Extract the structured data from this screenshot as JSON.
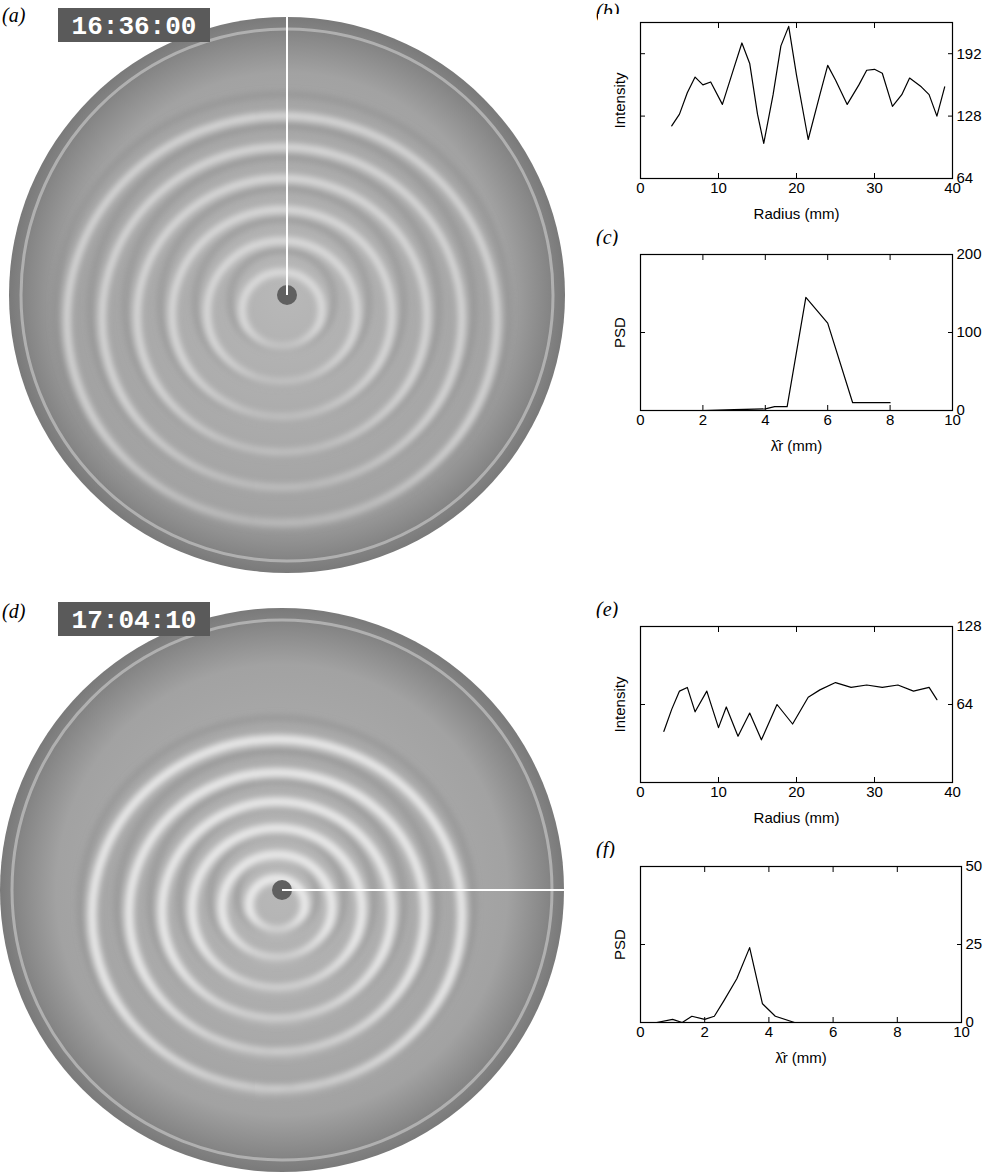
{
  "photos": [
    {
      "panel": "(a)",
      "timestamp": "16:36:00"
    },
    {
      "panel": "(d)",
      "timestamp": "17:04:10"
    }
  ],
  "chart_data": [
    {
      "panel": "(b)",
      "type": "line",
      "xlabel": "Radius (mm)",
      "ylabel": "Intensity",
      "color": "#000000",
      "x": [
        4,
        5,
        6,
        7,
        8,
        9,
        10.5,
        12,
        13,
        14,
        15,
        15.8,
        17,
        18,
        19,
        20,
        21.5,
        23,
        24,
        25,
        26.5,
        28,
        29,
        30,
        31,
        32.3,
        33.5,
        34.5,
        36,
        37,
        38,
        39
      ],
      "values": [
        118,
        130,
        152,
        168,
        160,
        163,
        140,
        178,
        203,
        182,
        130,
        100,
        150,
        200,
        220,
        170,
        104,
        150,
        180,
        165,
        140,
        160,
        175,
        176,
        172,
        138,
        150,
        167,
        158,
        150,
        128,
        158
      ],
      "xlim": [
        0,
        40
      ],
      "xticks": [
        0,
        10,
        20,
        30,
        40
      ],
      "ylim": [
        64,
        224
      ],
      "yticks": [
        64,
        128,
        192
      ]
    },
    {
      "panel": "(c)",
      "type": "line",
      "xlabel": "λ̂r (mm)",
      "ylabel": "PSD",
      "color": "#000000",
      "x": [
        0,
        1,
        2,
        3,
        4,
        4.3,
        4.7,
        5.3,
        6,
        6.8,
        8
      ],
      "values": [
        0,
        0,
        0,
        1,
        2,
        5,
        5,
        145,
        112,
        10,
        10
      ],
      "xlim": [
        0,
        10
      ],
      "xticks": [
        0,
        2,
        4,
        6,
        8,
        10
      ],
      "ylim": [
        0,
        200
      ],
      "yticks": [
        0,
        100,
        200
      ]
    },
    {
      "panel": "(e)",
      "type": "line",
      "xlabel": "Radius (mm)",
      "ylabel": "Intensity",
      "color": "#000000",
      "x": [
        3,
        4,
        5,
        6,
        7,
        8.5,
        10,
        11,
        12.5,
        14,
        15.5,
        17.5,
        19.5,
        21.5,
        23,
        25,
        27,
        29,
        31,
        33,
        35,
        37,
        38
      ],
      "values": [
        42,
        60,
        75,
        78,
        58,
        75,
        45,
        62,
        38,
        57,
        35,
        64,
        48,
        70,
        76,
        82,
        78,
        80,
        78,
        80,
        75,
        78,
        68
      ],
      "xlim": [
        0,
        40
      ],
      "xticks": [
        0,
        10,
        20,
        30,
        40
      ],
      "ylim": [
        0,
        128
      ],
      "yticks": [
        64,
        128
      ]
    },
    {
      "panel": "(f)",
      "type": "line",
      "xlabel": "λ̂r (mm)",
      "ylabel": "PSD",
      "color": "#000000",
      "x": [
        0.5,
        1,
        1.3,
        1.6,
        2,
        2.3,
        2.6,
        3,
        3.4,
        3.8,
        4.2,
        4.8
      ],
      "values": [
        0,
        1,
        0,
        2,
        1,
        2,
        7,
        14,
        24,
        6,
        2,
        0
      ],
      "xlim": [
        0,
        10
      ],
      "xticks": [
        0,
        2,
        4,
        6,
        8,
        10
      ],
      "ylim": [
        0,
        50
      ],
      "yticks": [
        0,
        25,
        50
      ]
    }
  ]
}
